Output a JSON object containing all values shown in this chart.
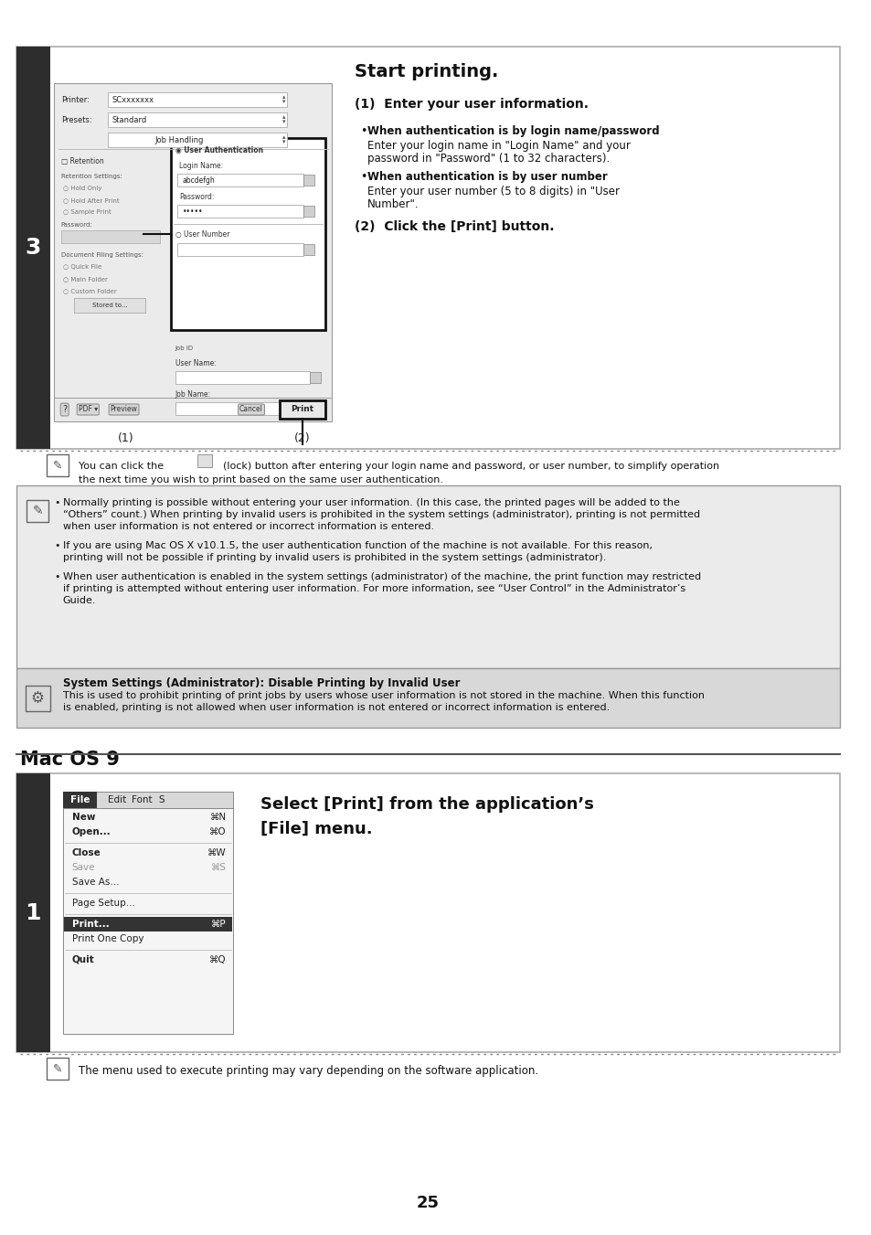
{
  "bg_color": "#ffffff",
  "dark_sidebar": "#2d2d2d",
  "section1": {
    "sidebar_label": "3",
    "title": "Start printing.",
    "step1_header": "(1)  Enter your user information.",
    "bullet1_bold": "When authentication is by login name/password",
    "bullet1_text": "Enter your login name in \"Login Name\" and your\npassword in \"Password\" (1 to 32 characters).",
    "bullet2_bold": "When authentication is by user number",
    "bullet2_text": "Enter your user number (5 to 8 digits) in \"User\nNumber\".",
    "step2": "(2)  Click the [Print] button.",
    "note_text": "You can click the       (lock) button after entering your login name and password, or user number, to simplify operation\nthe next time you wish to print based on the same user authentication."
  },
  "section2": {
    "bullet1": "Normally printing is possible without entering your user information. (In this case, the printed pages will be added to the\n“Others” count.) When printing by invalid users is prohibited in the system settings (administrator), printing is not permitted\nwhen user information is not entered or incorrect information is entered.",
    "bullet2": "If you are using Mac OS X v10.1.5, the user authentication function of the machine is not available. For this reason,\nprinting will not be possible if printing by invalid users is prohibited in the system settings (administrator).",
    "bullet3": "When user authentication is enabled in the system settings (administrator) of the machine, the print function may restricted\nif printing is attempted without entering user information. For more information, see “User Control” in the Administrator’s\nGuide.",
    "sys_title": "System Settings (Administrator): Disable Printing by Invalid User",
    "sys_text": "This is used to prohibit printing of print jobs by users whose user information is not stored in the machine. When this function\nis enabled, printing is not allowed when user information is not entered or incorrect information is entered."
  },
  "section3": {
    "macos_title": "Mac OS 9",
    "sidebar_label": "1",
    "step_title": "Select [Print] from the application’s\n[File] menu.",
    "note_text": "The menu used to execute printing may vary depending on the software application."
  },
  "page_number": "25"
}
